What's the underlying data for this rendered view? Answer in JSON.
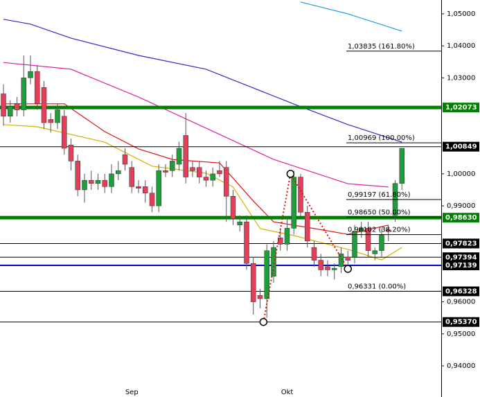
{
  "chart_data": {
    "type": "candlestick",
    "ylim": [
      0.93026,
      1.05433
    ],
    "yticks": [
      {
        "value": 1.05,
        "label": "1,05000"
      },
      {
        "value": 1.04,
        "label": "1,04000"
      },
      {
        "value": 1.03,
        "label": "1,03000"
      },
      {
        "value": 1.0,
        "label": "1,00000"
      },
      {
        "value": 0.99,
        "label": "0,99000"
      },
      {
        "value": 0.96,
        "label": "0,96000"
      },
      {
        "value": 0.95,
        "label": "0,95000"
      },
      {
        "value": 0.94,
        "label": "0,94000"
      }
    ],
    "categories": [
      null,
      null,
      null,
      null,
      null,
      null,
      null,
      null,
      null,
      null,
      null,
      null,
      null,
      null,
      null,
      null,
      null,
      null,
      null,
      "Sep",
      null,
      null,
      null,
      null,
      null,
      null,
      null,
      null,
      null,
      null,
      null,
      null,
      null,
      null,
      null,
      null,
      null,
      null,
      null,
      null,
      null,
      null,
      "Okt",
      null,
      null,
      null,
      null,
      null,
      null,
      null,
      null,
      null,
      null,
      null,
      null,
      null,
      null,
      null,
      null,
      null
    ],
    "up_color": "#1e9e3a",
    "down_color": "#e0405a",
    "ohlc": [
      [
        1.025,
        1.028,
        1.015,
        1.018
      ],
      [
        1.018,
        1.023,
        1.016,
        1.021
      ],
      [
        1.022,
        1.024,
        1.018,
        1.02
      ],
      [
        1.02,
        1.037,
        1.018,
        1.03
      ],
      [
        1.03,
        1.037,
        1.028,
        1.032
      ],
      [
        1.032,
        1.034,
        1.02,
        1.022
      ],
      [
        1.027,
        1.029,
        1.014,
        1.016
      ],
      [
        1.017,
        1.019,
        1.013,
        1.016
      ],
      [
        1.016,
        1.022,
        1.014,
        1.02
      ],
      [
        1.018,
        1.02,
        1.006,
        1.008
      ],
      [
        1.009,
        1.011,
        1.001,
        1.004
      ],
      [
        1.004,
        1.006,
        0.993,
        0.995
      ],
      [
        0.995,
        1.0,
        0.991,
        0.998
      ],
      [
        0.998,
        1.001,
        0.995,
        0.997
      ],
      [
        0.997,
        1.0,
        0.995,
        0.998
      ],
      [
        0.998,
        1.0,
        0.994,
        0.996
      ],
      [
        0.996,
        1.003,
        0.994,
        1.0
      ],
      [
        1.0,
        1.004,
        0.998,
        1.001
      ],
      [
        1.006,
        1.008,
        1.001,
        1.003
      ],
      [
        1.002,
        1.004,
        0.994,
        0.996
      ],
      [
        0.996,
        0.998,
        0.994,
        0.9955
      ],
      [
        0.996,
        0.998,
        0.991,
        0.994
      ],
      [
        0.994,
        0.996,
        0.988,
        0.99
      ],
      [
        0.99,
        1.003,
        0.988,
        1.001
      ],
      [
        1.001,
        1.003,
        0.999,
        1.0005
      ],
      [
        1.001,
        1.006,
        0.999,
        1.004
      ],
      [
        1.003,
        1.01,
        1.001,
        1.008
      ],
      [
        1.012,
        1.019,
        0.997,
        0.999
      ],
      [
        1.002,
        1.004,
        0.999,
        1.001
      ],
      [
        1.002,
        1.004,
        0.997,
        0.999
      ],
      [
        0.999,
        1.001,
        0.996,
        0.998
      ],
      [
        0.998,
        1.002,
        0.996,
        1.0
      ],
      [
        1.001,
        1.004,
        0.999,
        1.0
      ],
      [
        1.002,
        1.004,
        0.985,
        0.993
      ],
      [
        0.993,
        0.995,
        0.984,
        0.986
      ],
      [
        0.984,
        0.987,
        0.982,
        0.985
      ],
      [
        0.985,
        0.987,
        0.97,
        0.972
      ],
      [
        0.972,
        0.974,
        0.956,
        0.96
      ],
      [
        0.962,
        0.964,
        0.958,
        0.961
      ],
      [
        0.961,
        0.978,
        0.955,
        0.976
      ],
      [
        0.968,
        0.979,
        0.966,
        0.977
      ],
      [
        0.98,
        0.983,
        0.976,
        0.978
      ],
      [
        0.978,
        0.986,
        0.976,
        0.983
      ],
      [
        0.983,
        1.001,
        0.981,
        0.999
      ],
      [
        0.999,
        1.0,
        0.986,
        0.988
      ],
      [
        0.988,
        0.99,
        0.977,
        0.979
      ],
      [
        0.977,
        0.979,
        0.971,
        0.973
      ],
      [
        0.973,
        0.975,
        0.968,
        0.97
      ],
      [
        0.971,
        0.973,
        0.968,
        0.97
      ],
      [
        0.97,
        0.972,
        0.967,
        0.9705
      ],
      [
        0.971,
        0.977,
        0.969,
        0.975
      ],
      [
        0.974,
        0.976,
        0.971,
        0.973
      ],
      [
        0.974,
        0.984,
        0.972,
        0.982
      ],
      [
        0.982,
        0.985,
        0.98,
        0.983
      ],
      [
        0.983,
        0.985,
        0.974,
        0.976
      ],
      [
        0.975,
        0.977,
        0.973,
        0.976
      ],
      [
        0.976,
        0.983,
        0.974,
        0.981
      ],
      [
        0.9825,
        0.984,
        0.979,
        0.982
      ],
      [
        0.987,
        0.998,
        0.985,
        0.997
      ],
      [
        0.997,
        1.008,
        0.995,
        1.008
      ]
    ],
    "series": [
      {
        "color": "#2b2bc8",
        "x": [
          0,
          4,
          10,
          20,
          30,
          43,
          51,
          59
        ],
        "values": [
          1.0483,
          1.0468,
          1.0424,
          1.037,
          1.0327,
          1.0218,
          1.0154,
          1.0099
        ]
      },
      {
        "color": "#1ea0e0",
        "x": [
          44,
          51,
          59
        ],
        "values": [
          1.0537,
          1.05,
          1.0446
        ]
      },
      {
        "color": "#e020a0",
        "x": [
          0,
          10,
          20,
          30,
          40,
          51,
          57
        ],
        "values": [
          1.0348,
          1.0327,
          1.024,
          1.0143,
          1.0045,
          0.9969,
          0.9959
        ]
      },
      {
        "color": "#e01010",
        "x": [
          0,
          9,
          15,
          20,
          25,
          32,
          37,
          40,
          46,
          51,
          57
        ],
        "values": [
          1.0219,
          1.0219,
          1.0132,
          1.0078,
          1.0045,
          1.0034,
          0.9915,
          0.985,
          0.9829,
          0.9811,
          0.984
        ]
      },
      {
        "color": "#d4b000",
        "x": [
          0,
          5,
          15,
          22,
          30,
          34,
          38,
          43,
          51,
          56,
          59
        ],
        "values": [
          1.0154,
          1.0147,
          1.0099,
          1.0024,
          1.0002,
          0.9959,
          0.9829,
          0.9807,
          0.9764,
          0.9731,
          0.977
        ]
      }
    ],
    "zigzag": {
      "color": "#e01010",
      "x": [
        38.5,
        42.5,
        51
      ],
      "values": [
        0.9537,
        1.0,
        0.9703
      ]
    },
    "levels": [
      {
        "value": 1.02073,
        "label": "1,02073",
        "color": "#008000",
        "width": 5
      },
      {
        "value": 1.00849,
        "label": "1,00849",
        "color": "#000000",
        "width": 1
      },
      {
        "value": 0.9863,
        "label": "0,98630",
        "color": "#008000",
        "width": 5
      },
      {
        "value": 0.97823,
        "label": "0,97823",
        "color": "#000000",
        "width": 1
      },
      {
        "value": 0.97394,
        "label": "0,97394",
        "color": "#000000",
        "width": 1
      },
      {
        "value": 0.97139,
        "label": "0,97139",
        "color": "#0000cc",
        "width": 2
      },
      {
        "value": 0.96328,
        "label": "0,96328",
        "color": "#000000",
        "width": 1
      },
      {
        "value": 0.9537,
        "label": "0,95370",
        "color": "#000000",
        "width": 1
      }
    ],
    "fib_levels": [
      {
        "value": 1.03835,
        "label": "1,03835 (161.80%)"
      },
      {
        "value": 1.00969,
        "label": "1,00969 (100.00%)"
      },
      {
        "value": 0.99197,
        "label": "0,99197 (61.80%)"
      },
      {
        "value": 0.9865,
        "label": "0,98650 (50.00%)"
      },
      {
        "value": 0.98102,
        "label": "0,98102 (38.20%)"
      },
      {
        "value": 0.96331,
        "label": "0,96331 (0.00%)"
      }
    ]
  }
}
